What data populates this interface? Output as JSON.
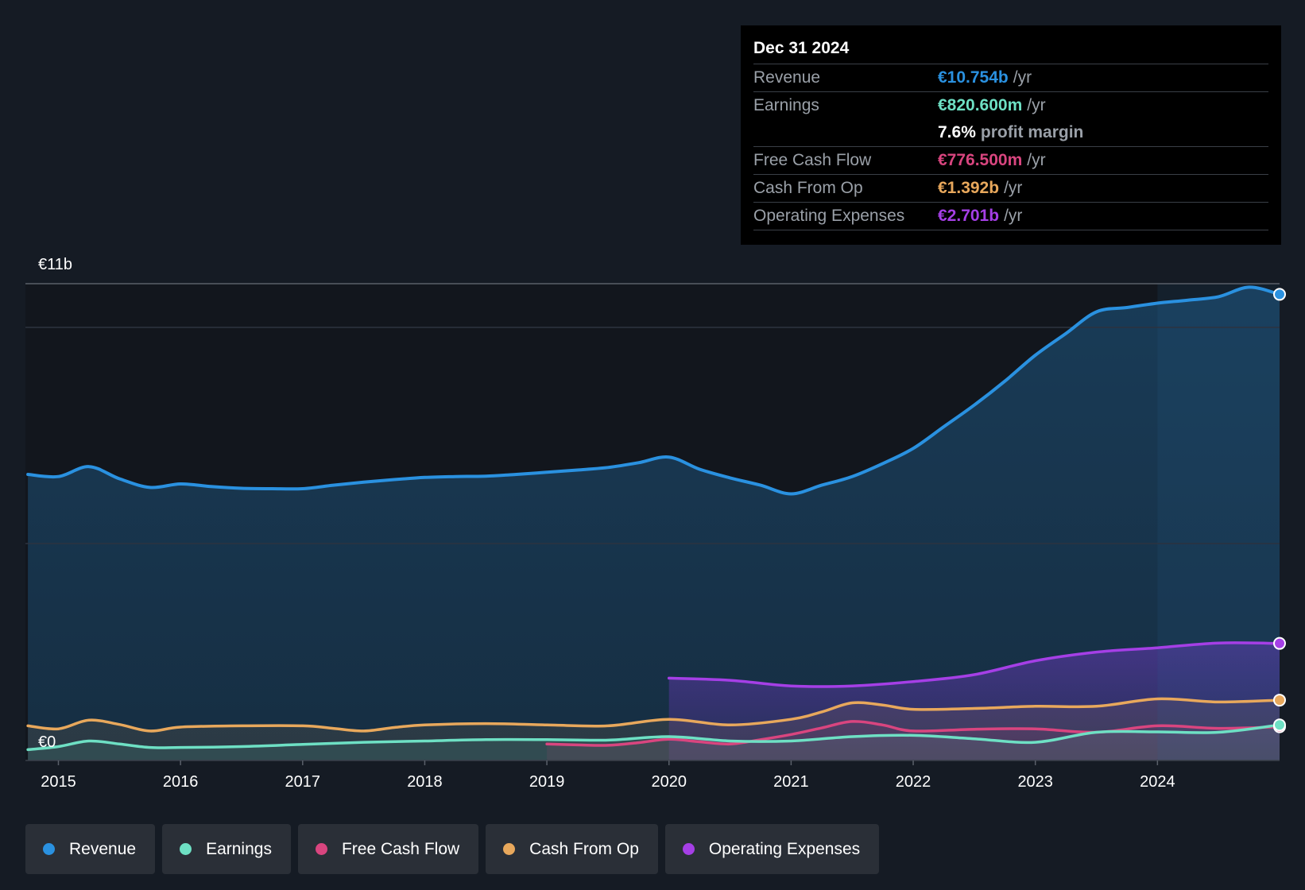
{
  "colors": {
    "revenue": "#2a91e0",
    "earnings": "#6ee0c4",
    "free_cash_flow": "#d9457f",
    "cash_from_op": "#e8a85c",
    "operating_expenses": "#a53fe6"
  },
  "tooltip": {
    "date": "Dec 31 2024",
    "revenue_label": "Revenue",
    "revenue_value": "€10.754b",
    "earnings_label": "Earnings",
    "earnings_value": "€820.600m",
    "profit_margin_value": "7.6%",
    "profit_margin_label": "profit margin",
    "fcf_label": "Free Cash Flow",
    "fcf_value": "€776.500m",
    "cfo_label": "Cash From Op",
    "cfo_value": "€1.392b",
    "opex_label": "Operating Expenses",
    "opex_value": "€2.701b",
    "per_year": "/yr"
  },
  "legend": [
    {
      "label": "Revenue",
      "color": "#2a91e0"
    },
    {
      "label": "Earnings",
      "color": "#6ee0c4"
    },
    {
      "label": "Free Cash Flow",
      "color": "#d9457f"
    },
    {
      "label": "Cash From Op",
      "color": "#e8a85c"
    },
    {
      "label": "Operating Expenses",
      "color": "#a53fe6"
    }
  ],
  "chart_data": {
    "type": "area",
    "y_axis_top_label": "€11b",
    "y_axis_bottom_label": "€0",
    "ylim": [
      0,
      11
    ],
    "xlim": [
      2014.73,
      2025.0
    ],
    "x_ticks": [
      2015,
      2016,
      2017,
      2018,
      2019,
      2020,
      2021,
      2022,
      2023,
      2024
    ],
    "x_tick_labels": [
      "2015",
      "2016",
      "2017",
      "2018",
      "2019",
      "2020",
      "2021",
      "2022",
      "2023",
      "2024"
    ],
    "highlight_start": 2024.0,
    "series": [
      {
        "name": "Revenue",
        "key": "revenue",
        "x": [
          2014.75,
          2015.0,
          2015.25,
          2015.5,
          2015.75,
          2016.0,
          2016.25,
          2016.5,
          2016.75,
          2017.0,
          2017.25,
          2017.5,
          2017.75,
          2018.0,
          2018.25,
          2018.5,
          2018.75,
          2019.0,
          2019.25,
          2019.5,
          2019.75,
          2020.0,
          2020.25,
          2020.5,
          2020.75,
          2021.0,
          2021.25,
          2021.5,
          2021.75,
          2022.0,
          2022.25,
          2022.5,
          2022.75,
          2023.0,
          2023.25,
          2023.5,
          2023.75,
          2024.0,
          2024.25,
          2024.5,
          2024.75,
          2025.0
        ],
        "values": [
          6.6,
          6.55,
          6.78,
          6.5,
          6.3,
          6.38,
          6.32,
          6.28,
          6.27,
          6.27,
          6.35,
          6.42,
          6.48,
          6.53,
          6.55,
          6.56,
          6.6,
          6.65,
          6.7,
          6.76,
          6.87,
          7.0,
          6.72,
          6.52,
          6.35,
          6.15,
          6.35,
          6.55,
          6.85,
          7.2,
          7.7,
          8.2,
          8.75,
          9.35,
          9.85,
          10.35,
          10.45,
          10.55,
          10.62,
          10.7,
          10.92,
          10.754
        ]
      },
      {
        "name": "Earnings",
        "key": "earnings",
        "x": [
          2014.75,
          2015.0,
          2015.25,
          2015.5,
          2015.75,
          2016.0,
          2016.5,
          2017.0,
          2017.5,
          2018.0,
          2018.5,
          2019.0,
          2019.5,
          2020.0,
          2020.5,
          2021.0,
          2021.5,
          2022.0,
          2022.5,
          2023.0,
          2023.5,
          2024.0,
          2024.5,
          2025.0
        ],
        "values": [
          0.25,
          0.32,
          0.45,
          0.38,
          0.3,
          0.3,
          0.32,
          0.37,
          0.42,
          0.45,
          0.48,
          0.48,
          0.47,
          0.55,
          0.45,
          0.45,
          0.55,
          0.58,
          0.5,
          0.42,
          0.65,
          0.66,
          0.65,
          0.8206
        ]
      },
      {
        "name": "Free Cash Flow",
        "key": "free_cash_flow",
        "x": [
          2019.0,
          2019.25,
          2019.5,
          2019.75,
          2020.0,
          2020.25,
          2020.5,
          2020.75,
          2021.0,
          2021.25,
          2021.5,
          2021.75,
          2022.0,
          2022.5,
          2023.0,
          2023.5,
          2024.0,
          2024.5,
          2025.0
        ],
        "values": [
          0.38,
          0.36,
          0.35,
          0.41,
          0.49,
          0.43,
          0.38,
          0.48,
          0.6,
          0.75,
          0.9,
          0.82,
          0.68,
          0.72,
          0.73,
          0.65,
          0.8,
          0.74,
          0.7765
        ]
      },
      {
        "name": "Cash From Op",
        "key": "cash_from_op",
        "x": [
          2014.75,
          2015.0,
          2015.25,
          2015.5,
          2015.75,
          2016.0,
          2016.5,
          2017.0,
          2017.25,
          2017.5,
          2017.75,
          2018.0,
          2018.5,
          2019.0,
          2019.5,
          2020.0,
          2020.5,
          2021.0,
          2021.25,
          2021.5,
          2021.75,
          2022.0,
          2022.5,
          2023.0,
          2023.5,
          2024.0,
          2024.5,
          2025.0
        ],
        "values": [
          0.8,
          0.73,
          0.93,
          0.83,
          0.68,
          0.77,
          0.8,
          0.8,
          0.74,
          0.68,
          0.76,
          0.82,
          0.85,
          0.82,
          0.8,
          0.95,
          0.82,
          0.95,
          1.12,
          1.33,
          1.28,
          1.18,
          1.2,
          1.25,
          1.25,
          1.42,
          1.35,
          1.392
        ]
      },
      {
        "name": "Operating Expenses",
        "key": "operating_expenses",
        "x": [
          2020.0,
          2020.5,
          2021.0,
          2021.5,
          2022.0,
          2022.5,
          2023.0,
          2023.5,
          2024.0,
          2024.5,
          2025.0
        ],
        "values": [
          1.9,
          1.85,
          1.72,
          1.72,
          1.82,
          1.98,
          2.3,
          2.5,
          2.6,
          2.71,
          2.701
        ]
      }
    ]
  }
}
